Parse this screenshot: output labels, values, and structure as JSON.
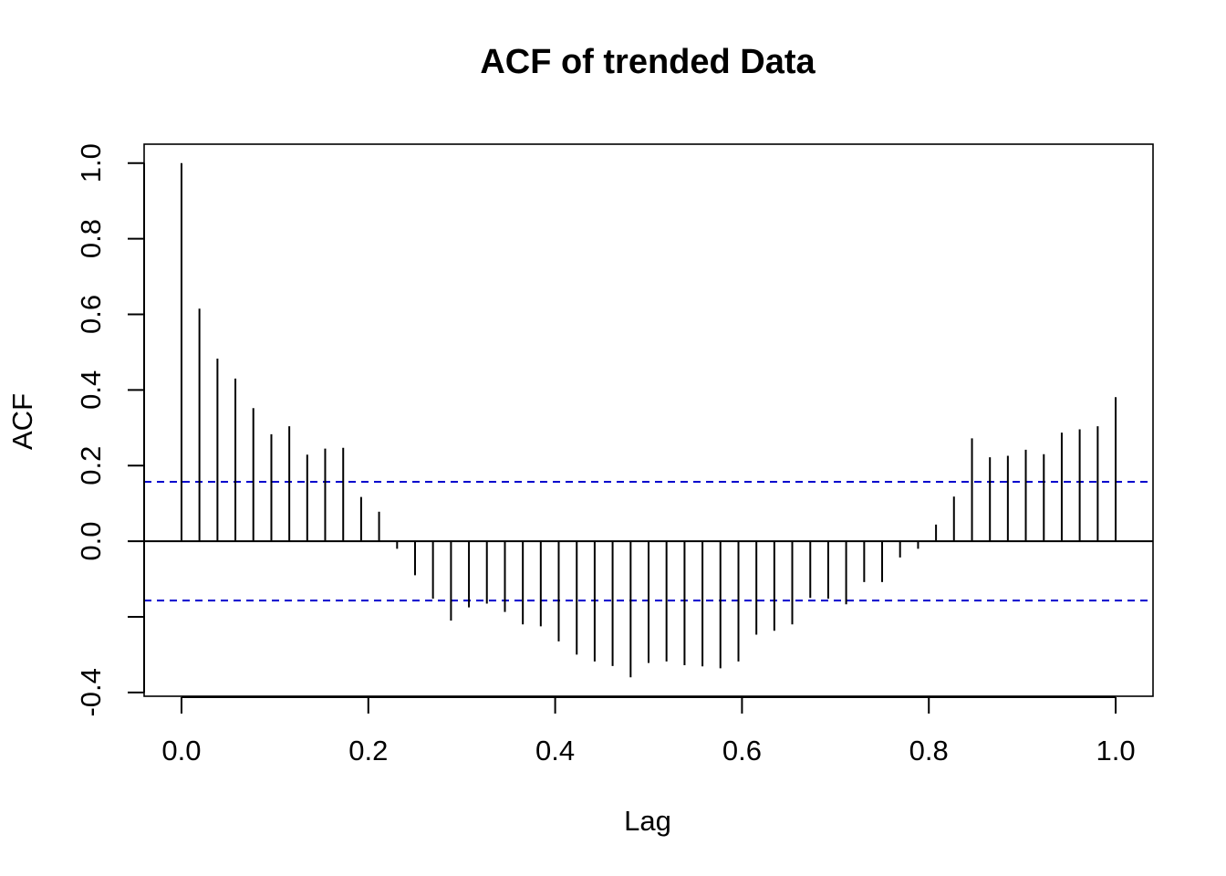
{
  "chart_data": {
    "type": "bar",
    "title": "ACF of trended Data",
    "xlabel": "Lag",
    "ylabel": "ACF",
    "xlim": [
      -0.04,
      1.04
    ],
    "ylim": [
      -0.41,
      1.05
    ],
    "x_ticks": [
      0.0,
      0.2,
      0.4,
      0.6,
      0.8,
      1.0
    ],
    "x_tick_labels": [
      "0.0",
      "0.2",
      "0.4",
      "0.6",
      "0.8",
      "1.0"
    ],
    "y_ticks": [
      -0.4,
      -0.2,
      0.0,
      0.2,
      0.4,
      0.6,
      0.8,
      1.0
    ],
    "y_tick_labels": [
      "-0.4",
      "",
      "0.0",
      "0.2",
      "0.4",
      "0.6",
      "0.8",
      "1.0"
    ],
    "confidence_bounds": [
      0.157,
      -0.157
    ],
    "confidence_color": "#0000CD",
    "bar_color": "#000000",
    "grid": false,
    "series": [
      {
        "lags": [
          0.0,
          0.0192,
          0.0385,
          0.0577,
          0.0769,
          0.0962,
          0.1154,
          0.1346,
          0.1538,
          0.1731,
          0.1923,
          0.2115,
          0.2308,
          0.25,
          0.2692,
          0.2885,
          0.3077,
          0.3269,
          0.3462,
          0.3654,
          0.3846,
          0.4038,
          0.4231,
          0.4423,
          0.4615,
          0.4808,
          0.5,
          0.5192,
          0.5385,
          0.5577,
          0.5769,
          0.5962,
          0.6154,
          0.6346,
          0.6538,
          0.6731,
          0.6923,
          0.7115,
          0.7308,
          0.75,
          0.7692,
          0.7885,
          0.8077,
          0.8269,
          0.8462,
          0.8654,
          0.8846,
          0.9038,
          0.9231,
          0.9423,
          0.9615,
          0.9808,
          1.0
        ],
        "values": [
          1.0,
          0.615,
          0.483,
          0.43,
          0.352,
          0.283,
          0.304,
          0.229,
          0.245,
          0.247,
          0.117,
          0.078,
          -0.02,
          -0.09,
          -0.152,
          -0.21,
          -0.175,
          -0.165,
          -0.187,
          -0.22,
          -0.225,
          -0.265,
          -0.3,
          -0.318,
          -0.33,
          -0.36,
          -0.322,
          -0.318,
          -0.328,
          -0.331,
          -0.336,
          -0.318,
          -0.247,
          -0.237,
          -0.22,
          -0.15,
          -0.152,
          -0.167,
          -0.108,
          -0.108,
          -0.043,
          -0.02,
          0.044,
          0.118,
          0.272,
          0.222,
          0.226,
          0.242,
          0.23,
          0.287,
          0.296,
          0.304,
          0.381
        ]
      }
    ]
  }
}
